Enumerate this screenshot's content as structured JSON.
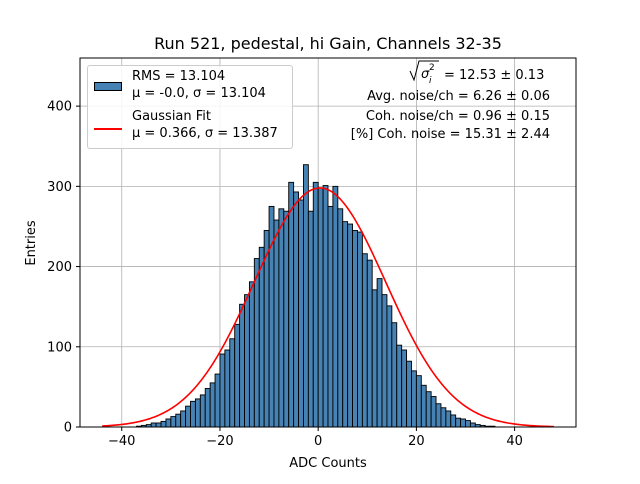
{
  "chart_data": {
    "type": "bar",
    "title": "Run 521, pedestal, hi Gain, Channels 32-35",
    "xlabel": "ADC Counts",
    "ylabel": "Entries",
    "xlim": [
      -48.5,
      52.5
    ],
    "ylim": [
      0,
      460
    ],
    "xticks": [
      -40,
      -20,
      0,
      20,
      40
    ],
    "xtick_labels": [
      "−40",
      "−20",
      "0",
      "20",
      "40"
    ],
    "yticks": [
      0,
      100,
      200,
      300,
      400
    ],
    "grid": true,
    "legend_position": "upper-left",
    "bin_width": 1,
    "bin_start": -44,
    "bar_color": "#4682b4",
    "fit_color": "#ff0000",
    "histogram_values": [
      0,
      0,
      0,
      0,
      0,
      0,
      0,
      1,
      2,
      3,
      5,
      5,
      7,
      10,
      13,
      16,
      20,
      26,
      32,
      35,
      40,
      48,
      55,
      66,
      91,
      96,
      110,
      128,
      153,
      165,
      181,
      210,
      224,
      245,
      275,
      258,
      272,
      269,
      305,
      293,
      283,
      327,
      269,
      305,
      298,
      301,
      275,
      300,
      272,
      256,
      253,
      245,
      243,
      216,
      208,
      171,
      185,
      165,
      151,
      130,
      102,
      96,
      82,
      70,
      64,
      52,
      44,
      38,
      29,
      24,
      20,
      15,
      11,
      10,
      8,
      5,
      3,
      2,
      1,
      1,
      0,
      0,
      0,
      0,
      0,
      0,
      0,
      0,
      0,
      0,
      0,
      0
    ],
    "gaussian_fit": {
      "mu": 0.366,
      "sigma": 13.387,
      "amplitude": 298,
      "x_range": [
        -44,
        48
      ]
    },
    "legend": [
      {
        "label_line1": "RMS = 13.104",
        "label_line2": "μ = -0.0, σ = 13.104"
      },
      {
        "label_line1": "Gaussian Fit",
        "label_line2": "μ = 0.366, σ = 13.387"
      }
    ],
    "annotations": {
      "sigma_line_suffix": " = 12.53 ± 0.13",
      "avg_noise": "Avg. noise/ch = 6.26 ± 0.06",
      "coh_noise": "Coh. noise/ch = 0.96 ± 0.15",
      "pct_coh": "[%] Coh. noise = 15.31 ± 2.44"
    }
  }
}
